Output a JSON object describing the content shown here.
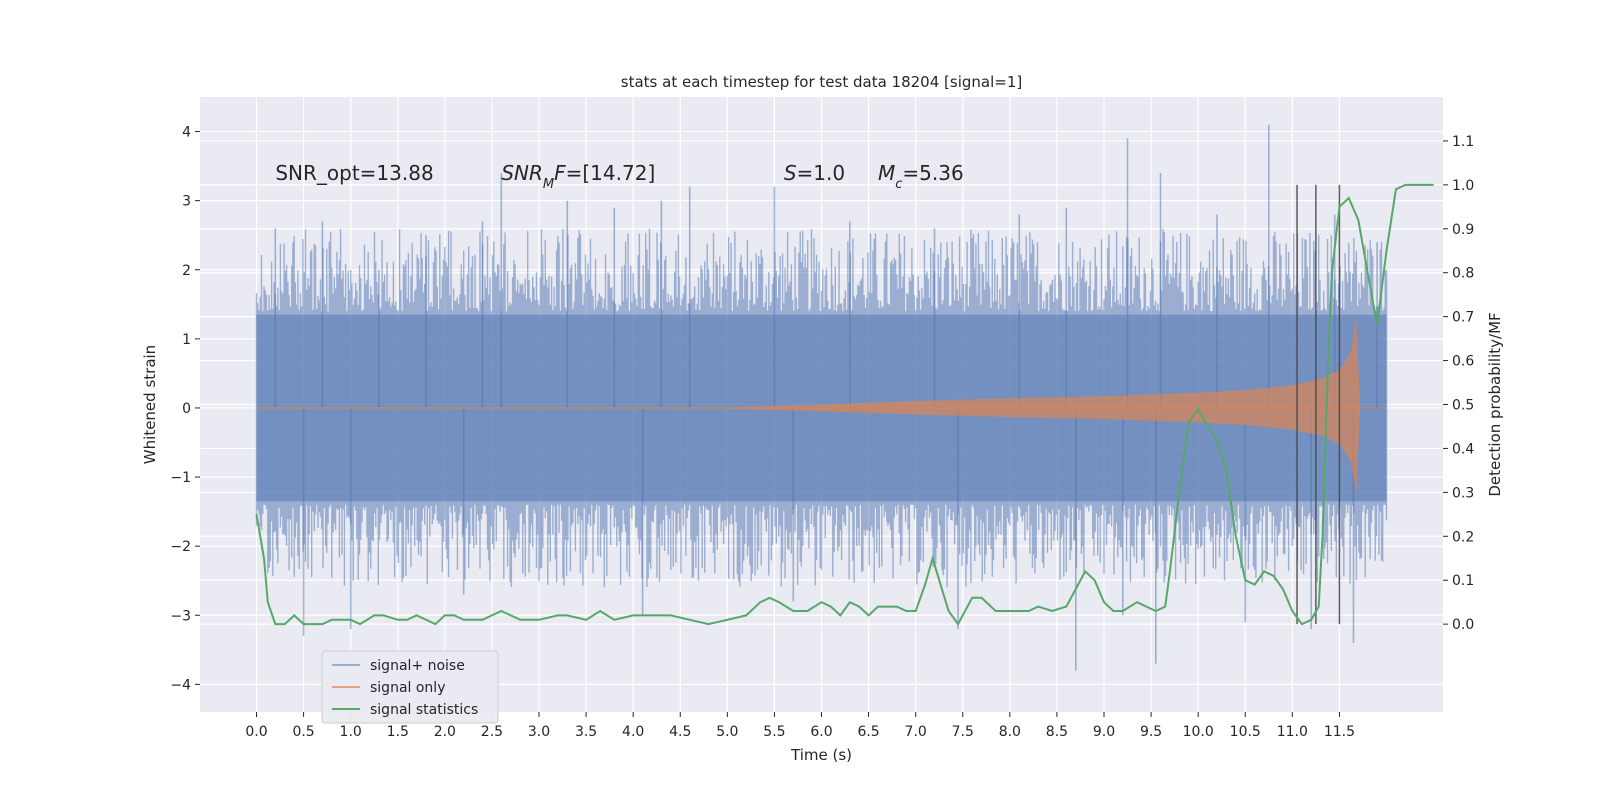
{
  "chart_data": {
    "type": "line",
    "title": "stats at each timestep for test data 18204 [signal=1]",
    "xlabel": "Time (s)",
    "ylabel_left": "Whitened strain",
    "ylabel_right": "Detection probability/MF",
    "xlim": [
      -0.6,
      12.6
    ],
    "ylim_left": [
      -4.4,
      4.5
    ],
    "ylim_right": [
      -0.2,
      1.2
    ],
    "x_ticks": [
      "0.0",
      "0.5",
      "1.0",
      "1.5",
      "2.0",
      "2.5",
      "3.0",
      "3.5",
      "4.0",
      "4.5",
      "5.0",
      "5.5",
      "6.0",
      "6.5",
      "7.0",
      "7.5",
      "8.0",
      "8.5",
      "9.0",
      "9.5",
      "10.0",
      "10.5",
      "11.0",
      "11.5"
    ],
    "y_ticks_left": [
      "−4",
      "−3",
      "−2",
      "−1",
      "0",
      "1",
      "2",
      "3",
      "4"
    ],
    "y_ticks_right": [
      "0.0",
      "0.1",
      "0.2",
      "0.3",
      "0.4",
      "0.5",
      "0.6",
      "0.7",
      "0.8",
      "0.9",
      "1.0",
      "1.1"
    ],
    "grid": true,
    "legend_position": "bottom-left",
    "annotations": [
      {
        "x": 0.2,
        "y": 3.3,
        "parts": [
          {
            "t": "SNR_opt=13.88",
            "style": "normal"
          }
        ]
      },
      {
        "x": 2.6,
        "y": 3.3,
        "parts": [
          {
            "t": "SNR",
            "style": "italic"
          },
          {
            "t": "M",
            "style": "italic-sub"
          },
          {
            "t": "F",
            "style": "italic"
          },
          {
            "t": "=[14.72]",
            "style": "normal"
          }
        ]
      },
      {
        "x": 5.6,
        "y": 3.3,
        "parts": [
          {
            "t": "S",
            "style": "italic"
          },
          {
            "t": "=1.0",
            "style": "normal"
          }
        ]
      },
      {
        "x": 6.6,
        "y": 3.3,
        "parts": [
          {
            "t": "M",
            "style": "italic"
          },
          {
            "t": "c",
            "style": "italic-sub"
          },
          {
            "t": "=5.36",
            "style": "normal"
          }
        ]
      }
    ],
    "vertical_lines": {
      "x": [
        11.05,
        11.25,
        11.5
      ],
      "y_range_right": [
        0.0,
        1.0
      ]
    },
    "series": [
      {
        "name": "signal+ noise",
        "color": "#4c72b0",
        "opacity": 0.5,
        "t_start": 0.0,
        "t_end": 12.0,
        "dense_band": [
          -1.35,
          1.35
        ],
        "peaks_up": [
          [
            0.2,
            2.6
          ],
          [
            0.7,
            2.7
          ],
          [
            1.3,
            2.0
          ],
          [
            1.8,
            2.5
          ],
          [
            2.4,
            2.7
          ],
          [
            2.6,
            3.4
          ],
          [
            3.3,
            3.0
          ],
          [
            3.8,
            2.9
          ],
          [
            4.3,
            3.0
          ],
          [
            4.6,
            3.2
          ],
          [
            5.5,
            3.2
          ],
          [
            6.3,
            2.7
          ],
          [
            7.2,
            2.6
          ],
          [
            8.1,
            2.8
          ],
          [
            8.6,
            2.9
          ],
          [
            9.25,
            3.9
          ],
          [
            9.6,
            3.4
          ],
          [
            10.2,
            2.8
          ],
          [
            10.75,
            4.1
          ],
          [
            11.45,
            2.8
          ],
          [
            11.9,
            2.4
          ]
        ],
        "peaks_down": [
          [
            0.5,
            -3.3
          ],
          [
            1.0,
            -3.2
          ],
          [
            2.2,
            -2.7
          ],
          [
            4.1,
            -3.0
          ],
          [
            5.7,
            -2.8
          ],
          [
            7.45,
            -3.2
          ],
          [
            8.7,
            -3.8
          ],
          [
            9.2,
            -3.0
          ],
          [
            9.55,
            -3.7
          ],
          [
            10.5,
            -3.1
          ],
          [
            11.2,
            -3.2
          ],
          [
            11.65,
            -3.4
          ]
        ]
      },
      {
        "name": "signal only",
        "color": "#dd8452",
        "opacity": 0.7,
        "t_start": 0.0,
        "t_end": 11.7,
        "envelope": [
          [
            0.0,
            0.01
          ],
          [
            5.0,
            0.01
          ],
          [
            6.0,
            0.05
          ],
          [
            7.0,
            0.1
          ],
          [
            8.0,
            0.14
          ],
          [
            9.0,
            0.17
          ],
          [
            10.0,
            0.22
          ],
          [
            10.5,
            0.26
          ],
          [
            11.0,
            0.33
          ],
          [
            11.3,
            0.42
          ],
          [
            11.5,
            0.55
          ],
          [
            11.62,
            0.8
          ],
          [
            11.68,
            1.3
          ],
          [
            11.72,
            0.0
          ]
        ]
      },
      {
        "name": "signal statistics",
        "color": "#55a868",
        "axis": "right",
        "points": [
          [
            0.0,
            0.25
          ],
          [
            0.08,
            0.15
          ],
          [
            0.12,
            0.05
          ],
          [
            0.2,
            0.0
          ],
          [
            0.3,
            0.0
          ],
          [
            0.4,
            0.02
          ],
          [
            0.5,
            0.0
          ],
          [
            0.7,
            0.0
          ],
          [
            0.8,
            0.01
          ],
          [
            1.0,
            0.01
          ],
          [
            1.1,
            0.0
          ],
          [
            1.25,
            0.02
          ],
          [
            1.35,
            0.02
          ],
          [
            1.5,
            0.01
          ],
          [
            1.6,
            0.01
          ],
          [
            1.7,
            0.02
          ],
          [
            1.9,
            0.0
          ],
          [
            2.0,
            0.02
          ],
          [
            2.1,
            0.02
          ],
          [
            2.2,
            0.01
          ],
          [
            2.4,
            0.01
          ],
          [
            2.5,
            0.02
          ],
          [
            2.6,
            0.03
          ],
          [
            2.7,
            0.02
          ],
          [
            2.8,
            0.01
          ],
          [
            2.9,
            0.01
          ],
          [
            3.0,
            0.01
          ],
          [
            3.2,
            0.02
          ],
          [
            3.3,
            0.02
          ],
          [
            3.5,
            0.01
          ],
          [
            3.65,
            0.03
          ],
          [
            3.8,
            0.01
          ],
          [
            4.0,
            0.02
          ],
          [
            4.2,
            0.02
          ],
          [
            4.4,
            0.02
          ],
          [
            4.6,
            0.01
          ],
          [
            4.8,
            0.0
          ],
          [
            5.0,
            0.01
          ],
          [
            5.2,
            0.02
          ],
          [
            5.35,
            0.05
          ],
          [
            5.45,
            0.06
          ],
          [
            5.55,
            0.05
          ],
          [
            5.7,
            0.03
          ],
          [
            5.85,
            0.03
          ],
          [
            6.0,
            0.05
          ],
          [
            6.1,
            0.04
          ],
          [
            6.2,
            0.02
          ],
          [
            6.3,
            0.05
          ],
          [
            6.4,
            0.04
          ],
          [
            6.5,
            0.02
          ],
          [
            6.6,
            0.04
          ],
          [
            6.7,
            0.04
          ],
          [
            6.8,
            0.04
          ],
          [
            6.9,
            0.03
          ],
          [
            7.0,
            0.03
          ],
          [
            7.1,
            0.09
          ],
          [
            7.18,
            0.15
          ],
          [
            7.25,
            0.1
          ],
          [
            7.35,
            0.03
          ],
          [
            7.45,
            0.0
          ],
          [
            7.6,
            0.06
          ],
          [
            7.7,
            0.06
          ],
          [
            7.85,
            0.03
          ],
          [
            8.0,
            0.03
          ],
          [
            8.2,
            0.03
          ],
          [
            8.3,
            0.04
          ],
          [
            8.45,
            0.03
          ],
          [
            8.6,
            0.04
          ],
          [
            8.7,
            0.08
          ],
          [
            8.8,
            0.12
          ],
          [
            8.9,
            0.1
          ],
          [
            9.0,
            0.05
          ],
          [
            9.1,
            0.03
          ],
          [
            9.2,
            0.03
          ],
          [
            9.35,
            0.05
          ],
          [
            9.45,
            0.04
          ],
          [
            9.55,
            0.03
          ],
          [
            9.65,
            0.04
          ],
          [
            9.7,
            0.12
          ],
          [
            9.8,
            0.3
          ],
          [
            9.9,
            0.46
          ],
          [
            10.0,
            0.49
          ],
          [
            10.1,
            0.45
          ],
          [
            10.2,
            0.42
          ],
          [
            10.3,
            0.35
          ],
          [
            10.4,
            0.2
          ],
          [
            10.5,
            0.1
          ],
          [
            10.6,
            0.09
          ],
          [
            10.7,
            0.12
          ],
          [
            10.8,
            0.11
          ],
          [
            10.9,
            0.08
          ],
          [
            11.0,
            0.03
          ],
          [
            11.1,
            0.0
          ],
          [
            11.2,
            0.01
          ],
          [
            11.28,
            0.04
          ],
          [
            11.32,
            0.2
          ],
          [
            11.38,
            0.6
          ],
          [
            11.42,
            0.8
          ],
          [
            11.5,
            0.95
          ],
          [
            11.6,
            0.97
          ],
          [
            11.7,
            0.92
          ],
          [
            11.8,
            0.8
          ],
          [
            11.9,
            0.68
          ],
          [
            12.0,
            0.85
          ],
          [
            12.1,
            0.99
          ],
          [
            12.2,
            1.0
          ],
          [
            12.5,
            1.0
          ]
        ]
      }
    ]
  }
}
